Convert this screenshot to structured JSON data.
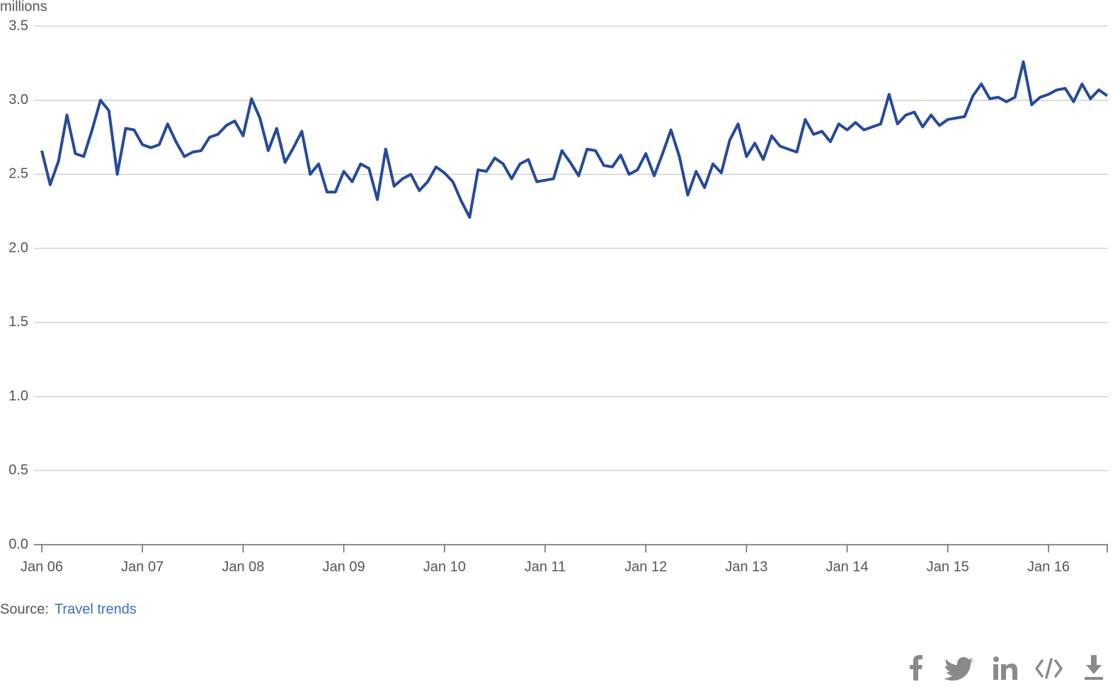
{
  "chart_data": {
    "type": "line",
    "y_label": "millions",
    "source_label": "Source:",
    "source_text": "Travel trends",
    "color": "#264a9b",
    "grid": true,
    "ylim": [
      0,
      3.5
    ],
    "yticks": [
      {
        "value": 0,
        "label": "0.0"
      },
      0.5,
      {
        "value": 1,
        "label": "1.0"
      },
      1.5,
      {
        "value": 2,
        "label": "2.0"
      },
      2.5,
      {
        "value": 3,
        "label": "3.0"
      },
      3.5
    ],
    "categories": [
      "Jan 06",
      null,
      null,
      null,
      null,
      null,
      null,
      null,
      null,
      null,
      null,
      null,
      "Jan 07",
      null,
      null,
      null,
      null,
      null,
      null,
      null,
      null,
      null,
      null,
      null,
      "Jan 08",
      null,
      null,
      null,
      null,
      null,
      null,
      null,
      null,
      null,
      null,
      null,
      "Jan 09",
      null,
      null,
      null,
      null,
      null,
      null,
      null,
      null,
      null,
      null,
      null,
      "Jan 10",
      null,
      null,
      null,
      null,
      null,
      null,
      null,
      null,
      null,
      null,
      null,
      "Jan 11",
      null,
      null,
      null,
      null,
      null,
      null,
      null,
      null,
      null,
      null,
      null,
      "Jan 12",
      null,
      null,
      null,
      null,
      null,
      null,
      null,
      null,
      null,
      null,
      null,
      "Jan 13",
      null,
      null,
      null,
      null,
      null,
      null,
      null,
      null,
      null,
      null,
      null,
      "Jan 14",
      null,
      null,
      null,
      null,
      null,
      null,
      null,
      null,
      null,
      null,
      null,
      "Jan 15",
      null,
      null,
      null,
      null,
      null,
      null,
      null,
      null,
      null,
      null,
      null,
      "Jan 16",
      null,
      null,
      null,
      null,
      null,
      null,
      null
    ],
    "values": [
      2.66,
      2.43,
      2.59,
      2.9,
      2.64,
      2.62,
      2.8,
      3.0,
      2.93,
      2.5,
      2.81,
      2.8,
      2.7,
      2.68,
      2.7,
      2.84,
      2.72,
      2.62,
      2.65,
      2.66,
      2.75,
      2.77,
      2.83,
      2.86,
      2.76,
      3.01,
      2.88,
      2.66,
      2.81,
      2.58,
      2.68,
      2.79,
      2.5,
      2.57,
      2.38,
      2.38,
      2.52,
      2.45,
      2.57,
      2.54,
      2.33,
      2.67,
      2.42,
      2.47,
      2.5,
      2.39,
      2.45,
      2.55,
      2.51,
      2.45,
      2.32,
      2.21,
      2.53,
      2.52,
      2.61,
      2.57,
      2.47,
      2.57,
      2.6,
      2.45,
      2.46,
      2.47,
      2.66,
      2.58,
      2.49,
      2.67,
      2.66,
      2.56,
      2.55,
      2.63,
      2.5,
      2.53,
      2.64,
      2.49,
      2.64,
      2.8,
      2.62,
      2.36,
      2.52,
      2.41,
      2.57,
      2.51,
      2.73,
      2.84,
      2.62,
      2.71,
      2.6,
      2.76,
      2.69,
      2.67,
      2.65,
      2.87,
      2.77,
      2.79,
      2.72,
      2.84,
      2.8,
      2.85,
      2.8,
      2.82,
      2.84,
      3.04,
      2.84,
      2.9,
      2.92,
      2.82,
      2.9,
      2.83,
      2.87,
      2.88,
      2.89,
      3.03,
      3.11,
      3.01,
      3.02,
      2.99,
      3.02,
      3.26,
      2.97,
      3.02,
      3.04,
      3.07,
      3.08,
      2.99,
      3.11,
      3.01,
      3.07,
      3.03
    ]
  }
}
